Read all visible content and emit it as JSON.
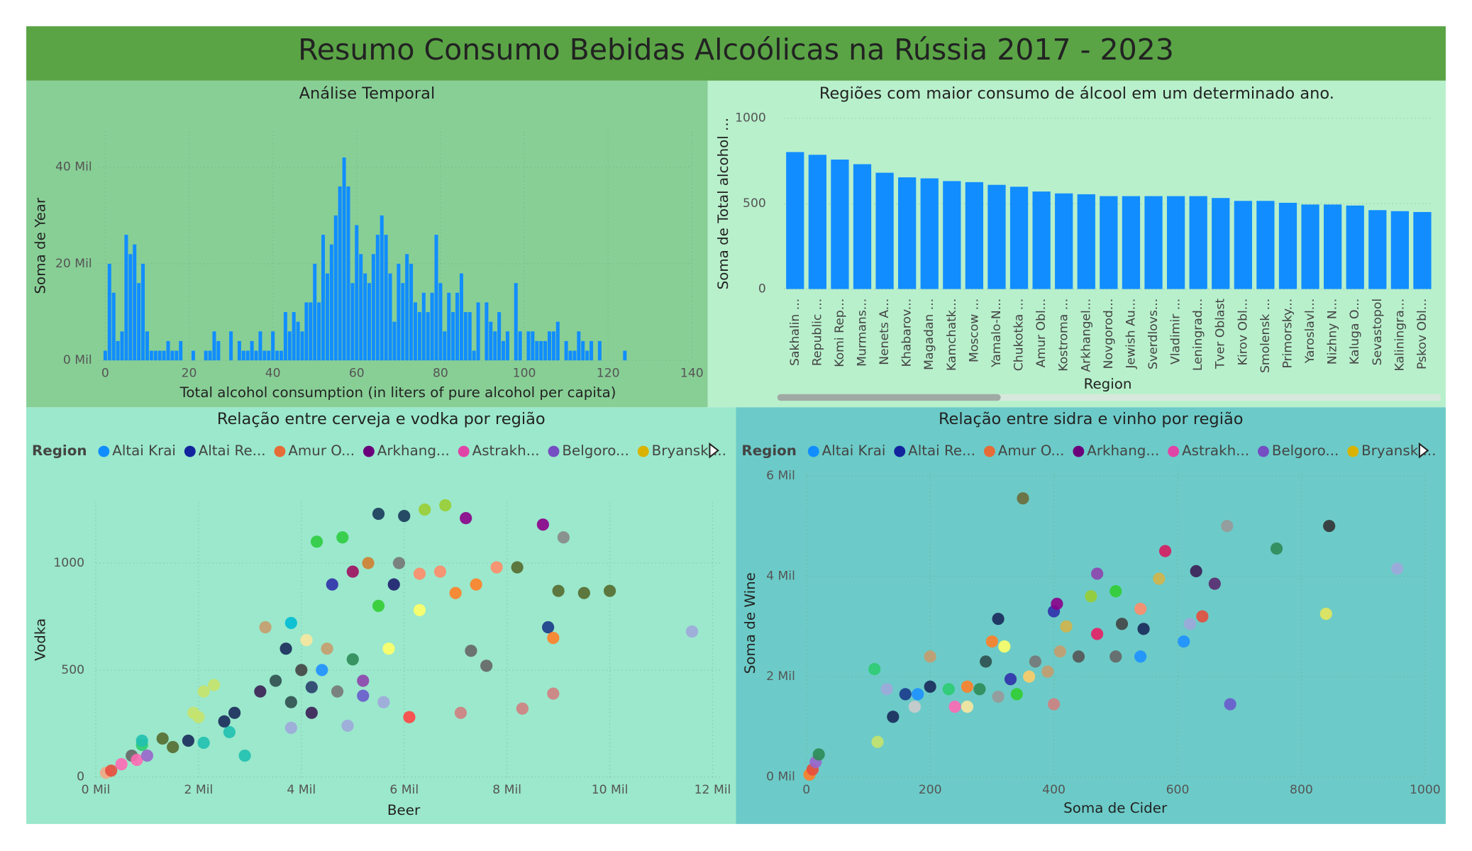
{
  "title": "Resumo Consumo Bebidas Alcoólicas na Rússia 2017 - 2023",
  "chart_data": [
    {
      "type": "histogram",
      "title": "Análise Temporal",
      "x_label": "Total alcohol consumption (in liters of pure alcohol per capita)",
      "y_label": "Soma de Year",
      "color": "#118dff",
      "x": [
        0,
        1,
        2,
        3,
        4,
        5,
        6,
        7,
        8,
        9,
        10,
        11,
        12,
        13,
        14,
        15,
        16,
        17,
        18,
        19,
        20,
        21,
        22,
        23,
        24,
        25,
        26,
        27,
        28,
        29,
        30,
        31,
        32,
        33,
        34,
        35,
        36,
        37,
        38,
        39,
        40,
        41,
        42,
        43,
        44,
        45,
        46,
        47,
        48,
        49,
        50,
        51,
        52,
        53,
        54,
        55,
        56,
        57,
        58,
        59,
        60,
        61,
        62,
        63,
        64,
        65,
        66,
        67,
        68,
        69,
        70,
        71,
        72,
        73,
        74,
        75,
        76,
        77,
        78,
        79,
        80,
        81,
        82,
        83,
        84,
        85,
        86,
        87,
        88,
        89,
        90,
        91,
        92,
        93,
        94,
        95,
        96,
        97,
        98,
        99,
        100,
        101,
        102,
        103,
        104,
        105,
        106,
        107,
        108,
        109,
        110,
        111,
        112,
        113,
        114,
        115,
        116,
        117,
        118,
        119,
        120,
        121,
        122,
        123,
        124
      ],
      "values": [
        2000,
        20000,
        14000,
        4000,
        6000,
        26000,
        22000,
        24000,
        16000,
        20000,
        6000,
        2000,
        2000,
        2000,
        2000,
        4000,
        2000,
        2000,
        4000,
        0,
        0,
        2000,
        0,
        0,
        2000,
        2000,
        6000,
        4000,
        0,
        0,
        6000,
        0,
        4000,
        2000,
        2000,
        4000,
        2000,
        6000,
        2000,
        2000,
        6000,
        2000,
        2000,
        10000,
        6000,
        10000,
        8000,
        6000,
        12000,
        12000,
        20000,
        12000,
        26000,
        18000,
        24000,
        30000,
        36000,
        42000,
        36000,
        16000,
        28000,
        22000,
        18000,
        16000,
        22000,
        26000,
        30000,
        26000,
        18000,
        8000,
        20000,
        16000,
        22000,
        20000,
        12000,
        10000,
        14000,
        10000,
        14000,
        26000,
        16000,
        6000,
        14000,
        10000,
        14000,
        18000,
        10000,
        10000,
        2000,
        12000,
        0,
        12000,
        8000,
        6000,
        10000,
        4000,
        6000,
        0,
        16000,
        6000,
        0,
        6000,
        6000,
        4000,
        4000,
        4000,
        6000,
        6000,
        8000,
        0,
        4000,
        2000,
        2000,
        6000,
        4000,
        2000,
        4000,
        0,
        4000,
        0,
        0,
        0,
        0,
        0,
        2000
      ],
      "xlim": [
        -1.6,
        140
      ],
      "xticks": [
        0,
        20,
        40,
        60,
        80,
        100,
        120,
        140
      ],
      "ylim": [
        0,
        47400
      ],
      "yticks": [
        {
          "value": 0,
          "label": "0 Mil"
        },
        {
          "value": 20000,
          "label": "20 Mil"
        },
        {
          "value": 40000,
          "label": "40 Mil"
        }
      ],
      "grid": true
    },
    {
      "type": "bar",
      "title": "Regiões com maior consumo de álcool em um determinado ano.",
      "x_label": "Region",
      "y_label": "Soma de Total alcohol ...",
      "color": "#118dff",
      "categories": [
        "Sakhalin ...",
        "Republic ...",
        "Komi Rep...",
        "Murmans...",
        "Nenets A...",
        "Khabarov...",
        "Magadan ...",
        "Kamchatk...",
        "Moscow ...",
        "Yamalo-N...",
        "Chukotka ...",
        "Amur Obl...",
        "Kostroma ...",
        "Arkhangel...",
        "Novgorod...",
        "Jewish Au...",
        "Sverdlovs...",
        "Vladimir ...",
        "Leningrad...",
        "Tver Oblast",
        "Kirov Obl...",
        "Smolensk ...",
        "Primorsky...",
        "Yaroslavl...",
        "Nizhny N...",
        "Kaluga O...",
        "Sevastopol",
        "Kaliningra...",
        "Pskov Obl..."
      ],
      "values": [
        802,
        786,
        758,
        731,
        681,
        654,
        648,
        632,
        626,
        610,
        599,
        571,
        560,
        555,
        544,
        544,
        544,
        544,
        544,
        533,
        516,
        516,
        505,
        495,
        495,
        489,
        462,
        456,
        451
      ],
      "ylim": [
        0,
        1000
      ],
      "yticks": [
        0,
        500,
        1000
      ],
      "grid": true
    },
    {
      "type": "scatter",
      "title": "Relação entre cerveja e vodka por região",
      "x_label": "Beer",
      "y_label": "Vodka",
      "legend_title": "Region",
      "legend": [
        {
          "name": "Altai Krai",
          "color": "#118dff"
        },
        {
          "name": "Altai Re...",
          "color": "#12239e"
        },
        {
          "name": "Amur O...",
          "color": "#e66c37"
        },
        {
          "name": "Arkhang...",
          "color": "#6b007b"
        },
        {
          "name": "Astrakh...",
          "color": "#e044a7"
        },
        {
          "name": "Belgoro...",
          "color": "#744ec2"
        },
        {
          "name": "Bryansk ...",
          "color": "#d9b300"
        }
      ],
      "x": [
        200,
        300,
        500,
        700,
        900,
        800,
        1000,
        1300,
        1500,
        900,
        1800,
        2100,
        2600,
        2900,
        1900,
        2100,
        2300,
        2000,
        2500,
        2700,
        3200,
        3500,
        3800,
        4000,
        4200,
        4500,
        3300,
        3800,
        4100,
        4400,
        4700,
        5000,
        5200,
        5500,
        5800,
        4300,
        4800,
        5300,
        5500,
        6000,
        6400,
        6800,
        7200,
        6300,
        6700,
        7000,
        7400,
        7800,
        8200,
        8700,
        9000,
        9500,
        10000,
        9100,
        8800,
        8900,
        11600,
        8900,
        8300,
        7100,
        7600,
        7300,
        5600,
        6100,
        4900,
        3800,
        5700,
        6300,
        4600,
        5000,
        5900,
        3700,
        4200,
        5200
      ],
      "values": [
        20,
        30,
        60,
        100,
        150,
        80,
        100,
        180,
        140,
        170,
        170,
        160,
        210,
        100,
        300,
        400,
        430,
        280,
        260,
        300,
        400,
        450,
        350,
        500,
        420,
        600,
        700,
        720,
        640,
        500,
        400,
        550,
        450,
        800,
        900,
        1100,
        1120,
        1000,
        1230,
        1220,
        1250,
        1270,
        1210,
        950,
        960,
        860,
        900,
        980,
        980,
        1180,
        870,
        860,
        870,
        1120,
        700,
        650,
        680,
        390,
        320,
        300,
        520,
        590,
        350,
        280,
        240,
        230,
        600,
        780,
        900,
        960,
        1000,
        600,
        300,
        380
      ],
      "colors": [
        "#f4a582",
        "#e74c3c",
        "#ff69b4",
        "#666666",
        "#2ecc71",
        "#ff69b4",
        "#9966cc",
        "#556b2f",
        "#556b2f",
        "#20c0b0",
        "#1a2a5a",
        "#20c0b0",
        "#20c0b0",
        "#20c0b0",
        "#c6e36b",
        "#c6e36b",
        "#c6e36b",
        "#c6e36b",
        "#1a2a5a",
        "#1a2a5a",
        "#3b1e55",
        "#2f4f4f",
        "#2f4f4f",
        "#444444",
        "#2a3f6b",
        "#c69c6d",
        "#c69c6d",
        "#00bcd4",
        "#f9e79f",
        "#1e90ff",
        "#777777",
        "#2e8b57",
        "#8e44ad",
        "#32cd32",
        "#1e1e6e",
        "#2ecc40",
        "#2ecc40",
        "#d08030",
        "#1a3a5a",
        "#1a3a5a",
        "#9acd32",
        "#9acd32",
        "#8b008b",
        "#ff8c69",
        "#ff8c69",
        "#ff7f27",
        "#ff7f27",
        "#ff8c69",
        "#556b2f",
        "#8b008b",
        "#556b2f",
        "#556b2f",
        "#556b2f",
        "#888888",
        "#1a3a8a",
        "#ff7f27",
        "#9fa8da",
        "#d08080",
        "#d08080",
        "#d08080",
        "#666666",
        "#666666",
        "#9fa8da",
        "#ff4444",
        "#9fa8da",
        "#9fa8da",
        "#ffff66",
        "#ffff66",
        "#3030aa",
        "#a01060",
        "#777777",
        "#1a2a5a",
        "#3b1e55",
        "#6a5acd"
      ],
      "xlim": [
        0,
        12200
      ],
      "xticks": [
        {
          "value": 0,
          "label": "0 Mil"
        },
        {
          "value": 2000,
          "label": "2 Mil"
        },
        {
          "value": 4000,
          "label": "4 Mil"
        },
        {
          "value": 6000,
          "label": "6 Mil"
        },
        {
          "value": 8000,
          "label": "8 Mil"
        },
        {
          "value": 10000,
          "label": "10 Mil"
        },
        {
          "value": 12000,
          "label": "12 Mil"
        }
      ],
      "ylim": [
        0,
        1285
      ],
      "yticks": [
        0,
        500,
        1000
      ],
      "grid": true
    },
    {
      "type": "scatter",
      "title": "Relação entre sidra e vinho por região",
      "x_label": "Soma de Cider",
      "y_label": "Soma de Wine",
      "legend_title": "Region",
      "legend": [
        {
          "name": "Altai Krai",
          "color": "#118dff"
        },
        {
          "name": "Altai Re...",
          "color": "#12239e"
        },
        {
          "name": "Amur O...",
          "color": "#e66c37"
        },
        {
          "name": "Arkhang...",
          "color": "#6b007b"
        },
        {
          "name": "Astrakh...",
          "color": "#e044a7"
        },
        {
          "name": "Belgoro...",
          "color": "#744ec2"
        },
        {
          "name": "Bryansk ...",
          "color": "#d9b300"
        }
      ],
      "x": [
        5,
        10,
        15,
        20,
        115,
        110,
        130,
        140,
        160,
        180,
        175,
        200,
        200,
        240,
        260,
        260,
        280,
        290,
        300,
        310,
        310,
        320,
        330,
        340,
        350,
        360,
        370,
        390,
        400,
        400,
        405,
        410,
        420,
        440,
        460,
        470,
        470,
        500,
        500,
        510,
        540,
        580,
        570,
        610,
        620,
        640,
        630,
        680,
        685,
        760,
        845,
        840,
        955,
        660,
        540,
        545,
        230
      ],
      "values": [
        50,
        150,
        300,
        450,
        700,
        2150,
        1750,
        1200,
        1650,
        1650,
        1400,
        2400,
        1800,
        1400,
        1400,
        1800,
        1750,
        2300,
        2700,
        3150,
        1600,
        2600,
        1950,
        1650,
        5550,
        2000,
        2300,
        2100,
        1450,
        3300,
        3450,
        2500,
        3000,
        2400,
        3600,
        4050,
        2850,
        3700,
        2400,
        3050,
        3350,
        4500,
        3950,
        2700,
        3050,
        3200,
        4100,
        5000,
        1450,
        4550,
        5000,
        3250,
        4150,
        3850,
        2400,
        2950,
        1750
      ],
      "colors": [
        "#ff7f27",
        "#e74c3c",
        "#9966cc",
        "#2e8b57",
        "#c6e36b",
        "#2ecc71",
        "#9fa8da",
        "#1a2a5a",
        "#1a3a8a",
        "#1e90ff",
        "#cccccc",
        "#c69c6d",
        "#1a2a5a",
        "#ff69b4",
        "#f9e79f",
        "#ff7f27",
        "#2e8b57",
        "#2f4f4f",
        "#ff7f27",
        "#1a2a5a",
        "#999999",
        "#ffff66",
        "#3030aa",
        "#32cd32",
        "#6b6b3a",
        "#ffcc66",
        "#777777",
        "#c69c6d",
        "#d08080",
        "#3030aa",
        "#8b008b",
        "#c69c6d",
        "#d4b44a",
        "#555555",
        "#9acd32",
        "#8e44ad",
        "#e91e63",
        "#32cd32",
        "#666666",
        "#444444",
        "#ff8c69",
        "#d81b60",
        "#d4b44a",
        "#1e90ff",
        "#9fa8da",
        "#e74c3c",
        "#3b1e55",
        "#999999",
        "#6a5acd",
        "#2e8b57",
        "#333333",
        "#e5e55a",
        "#9fa8da",
        "#5b2a6e",
        "#1e90ff",
        "#1a2a5a",
        "#2ecc71"
      ],
      "xlim": [
        0,
        1000
      ],
      "xticks": [
        0,
        200,
        400,
        600,
        800,
        1000
      ],
      "ylim": [
        0,
        6130
      ],
      "yticks": [
        {
          "value": 0,
          "label": "0 Mil"
        },
        {
          "value": 2000,
          "label": "2 Mil"
        },
        {
          "value": 4000,
          "label": "4 Mil"
        },
        {
          "value": 6000,
          "label": "6 Mil"
        }
      ],
      "grid": true
    }
  ]
}
